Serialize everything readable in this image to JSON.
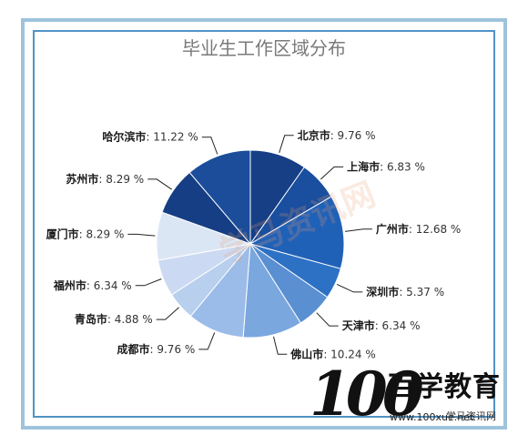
{
  "chart_data": {
    "type": "pie",
    "title": "毕业生工作区域分布",
    "unit": "%",
    "slices": [
      {
        "name": "北京市",
        "value": 9.76,
        "label": "9.76 %",
        "color": "#163f86"
      },
      {
        "name": "上海市",
        "value": 6.83,
        "label": "6.83 %",
        "color": "#1a4e9e"
      },
      {
        "name": "广州市",
        "value": 12.68,
        "label": "12.68 %",
        "color": "#2061b8"
      },
      {
        "name": "深圳市",
        "value": 5.37,
        "label": "5.37 %",
        "color": "#2d71c4"
      },
      {
        "name": "天津市",
        "value": 6.34,
        "label": "6.34 %",
        "color": "#5a8fd2"
      },
      {
        "name": "佛山市",
        "value": 10.24,
        "label": "10.24 %",
        "color": "#7ba7df"
      },
      {
        "name": "成都市",
        "value": 9.76,
        "label": "9.76 %",
        "color": "#9bbce8"
      },
      {
        "name": "青岛市",
        "value": 4.88,
        "label": "4.88 %",
        "color": "#b8cfee"
      },
      {
        "name": "福州市",
        "value": 6.34,
        "label": "6.34 %",
        "color": "#cbdaf2"
      },
      {
        "name": "厦门市",
        "value": 8.29,
        "label": "8.29 %",
        "color": "#dbe6f5"
      },
      {
        "name": "苏州市",
        "value": 8.29,
        "label": "8.29 %",
        "color": "#153e84"
      },
      {
        "name": "哈尔滨市",
        "value": 11.22,
        "label": "11.22 %",
        "color": "#1b4d9a"
      }
    ],
    "legend": "none"
  },
  "watermark": {
    "logo_digits": "100",
    "logo_name": "百学教育",
    "url": "www.100xue.net",
    "wechat": "学马资讯网",
    "stamp_text": "学马资讯网"
  },
  "colors": {
    "frame_outer": "#9ec3dc",
    "frame_inner": "#4f93c4",
    "title": "#7a7a7a",
    "slice_border": "#ffffff"
  }
}
